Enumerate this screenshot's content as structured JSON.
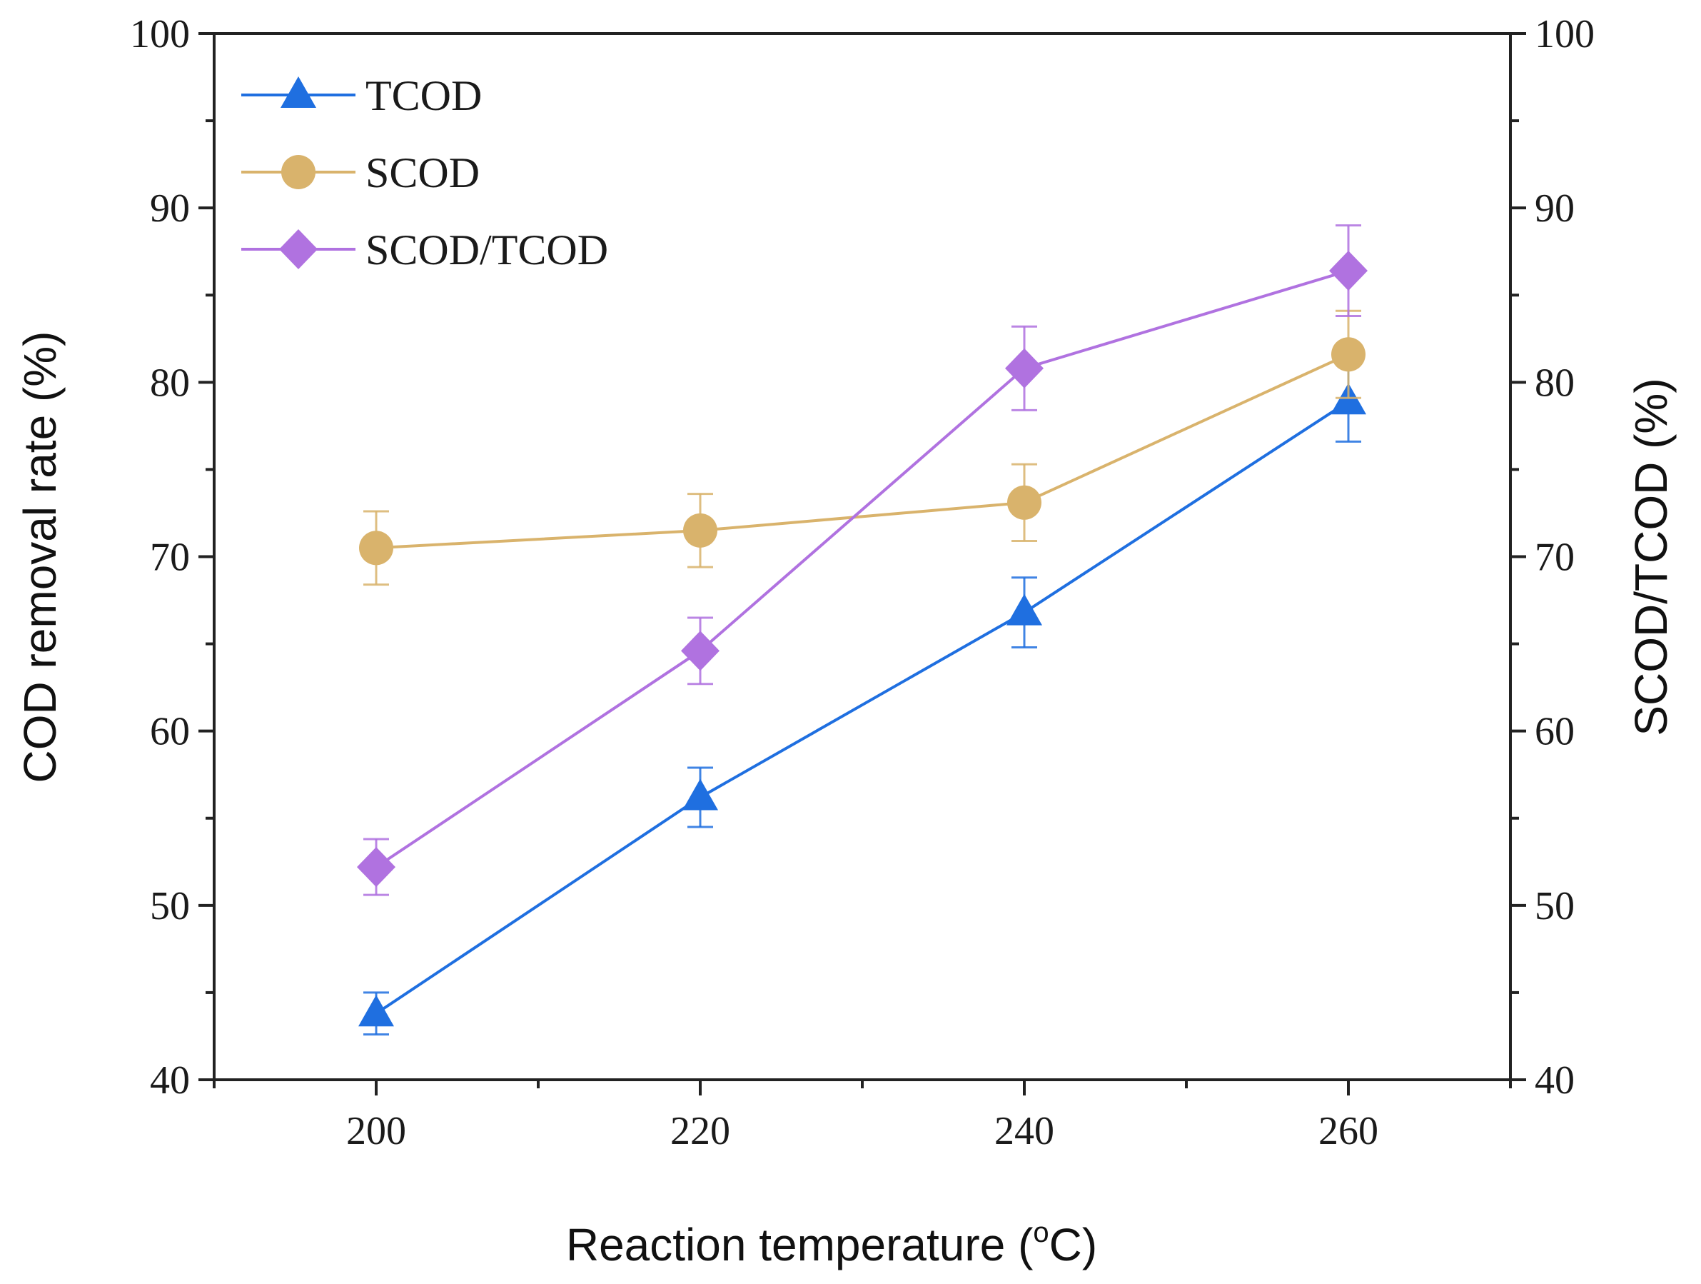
{
  "chart_data": {
    "type": "line",
    "title": "",
    "xlabel": "Reaction temperature (",
    "xlabel_sup": "o",
    "xlabel_unit": "C)",
    "ylabel": "COD removal rate (%)",
    "y2label": "SCOD/TCOD (%)",
    "xlim": [
      190,
      270
    ],
    "ylim": [
      40,
      100
    ],
    "y2lim": [
      40,
      100
    ],
    "xticks": [
      200,
      220,
      240,
      260
    ],
    "yticks": [
      40,
      50,
      60,
      70,
      80,
      90,
      100
    ],
    "x": [
      200,
      220,
      240,
      260
    ],
    "legend_position": "top-left",
    "grid": false,
    "series": [
      {
        "name": "TCOD",
        "axis": "left",
        "marker": "triangle",
        "color": "#1f6fe0",
        "values": [
          43.8,
          56.2,
          66.8,
          78.9
        ],
        "errors": [
          1.2,
          1.7,
          2.0,
          2.3
        ]
      },
      {
        "name": "SCOD",
        "axis": "left",
        "marker": "circle",
        "color": "#d9b36c",
        "values": [
          70.5,
          71.5,
          73.1,
          81.6
        ],
        "errors": [
          2.1,
          2.1,
          2.2,
          2.5
        ]
      },
      {
        "name": "SCOD/TCOD",
        "axis": "right",
        "marker": "diamond",
        "color": "#b072e0",
        "values": [
          52.2,
          64.6,
          80.8,
          86.4
        ],
        "errors": [
          1.6,
          1.9,
          2.4,
          2.6
        ]
      }
    ]
  }
}
